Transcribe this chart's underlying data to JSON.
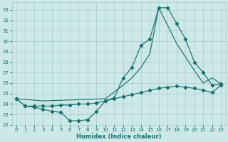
{
  "bg_color": "#cce8e8",
  "grid_color": "#aacccc",
  "line_color": "#1a7070",
  "xlabel": "Humidex (Indice chaleur)",
  "xlim": [
    -0.5,
    23.5
  ],
  "ylim": [
    22,
    33.7
  ],
  "yticks": [
    22,
    23,
    24,
    25,
    26,
    27,
    28,
    29,
    30,
    31,
    32,
    33
  ],
  "xticks": [
    0,
    1,
    2,
    3,
    4,
    5,
    6,
    7,
    8,
    9,
    10,
    11,
    12,
    13,
    14,
    15,
    16,
    17,
    18,
    19,
    20,
    21,
    22,
    23
  ],
  "curves": [
    {
      "x": [
        0,
        1,
        2,
        3,
        4,
        5,
        6,
        7,
        8,
        9,
        10,
        11,
        12,
        13,
        14,
        15,
        16,
        17,
        18,
        19,
        20,
        21,
        22,
        23
      ],
      "y": [
        24.5,
        23.8,
        23.7,
        23.5,
        23.3,
        23.2,
        22.4,
        22.4,
        22.5,
        23.3,
        24.3,
        24.6,
        26.5,
        27.5,
        29.6,
        30.2,
        33.2,
        33.2,
        31.7,
        30.2,
        28.0,
        27.0,
        25.8,
        25.9
      ],
      "marker": true
    },
    {
      "x": [
        0,
        3,
        10,
        12,
        13,
        14,
        15,
        16,
        17,
        18,
        19,
        20,
        21,
        22,
        23
      ],
      "y": [
        24.5,
        24.3,
        24.5,
        25.8,
        26.5,
        27.5,
        28.8,
        33.2,
        31.5,
        29.8,
        28.5,
        27.2,
        26.0,
        26.5,
        25.9
      ],
      "marker": false
    },
    {
      "x": [
        0,
        1,
        2,
        3,
        4,
        5,
        6,
        7,
        8,
        9,
        10,
        11,
        12,
        13,
        14,
        15,
        16,
        17,
        18,
        19,
        20,
        21,
        22,
        23
      ],
      "y": [
        24.5,
        23.8,
        23.8,
        23.8,
        23.8,
        23.9,
        23.9,
        24.0,
        24.0,
        24.1,
        24.3,
        24.5,
        24.7,
        24.9,
        25.1,
        25.3,
        25.5,
        25.6,
        25.7,
        25.6,
        25.5,
        25.3,
        25.1,
        25.8
      ],
      "marker": true
    }
  ]
}
